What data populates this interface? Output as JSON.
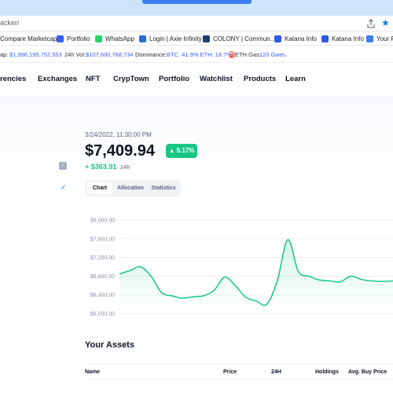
{
  "browser": {
    "url": "acker/",
    "bookmarks": [
      {
        "label": "Compare Marketcap",
        "icon": "bookmark-icon",
        "color": "#ffffff"
      },
      {
        "label": "Portfolio",
        "icon": "portfolio-icon",
        "color": "#3861fb"
      },
      {
        "label": "WhatsApp",
        "icon": "whatsapp-icon",
        "color": "#25d366"
      },
      {
        "label": "Login | Axie Infinity",
        "icon": "axie-icon",
        "color": "#2a6fdb"
      },
      {
        "label": "COLONY | Commun...",
        "icon": "colony-icon",
        "color": "#1f3b73"
      },
      {
        "label": "Katana Info",
        "icon": "katana-icon",
        "color": "#2d5be3"
      },
      {
        "label": "Katana Info",
        "icon": "katana-icon",
        "color": "#2d5be3"
      },
      {
        "label": "Your Pr",
        "icon": "download-icon",
        "color": "#3b7ff2"
      }
    ]
  },
  "ticker": {
    "cap_label": "ap:",
    "cap_value": "$1,996,195,752,553",
    "vol_label": "24h Vol:",
    "vol_value": "$107,600,768,734",
    "dom_label": "Dominance:",
    "dom_value": "BTC: 41.9% ETH: 18.7%",
    "gas_label": "ETH Gas:",
    "gas_value": "120 Gwei"
  },
  "nav": {
    "items": [
      "rencies",
      "Exchanges",
      "NFT",
      "CrypTown",
      "Portfolio",
      "Watchlist",
      "Products",
      "Learn"
    ]
  },
  "portfolio": {
    "timestamp": "3/24/2022, 11:30:00 PM",
    "value": "$7,409.94",
    "change_pct": "5.17%",
    "change_value": "+ $363.91",
    "period": "24h",
    "tabs": [
      "Chart",
      "Allocation",
      "Statistics"
    ],
    "active_tab": "Chart"
  },
  "chart_data": {
    "type": "area",
    "y_ticks": [
      "$8,000.00",
      "$7,600.00",
      "$7,200.00",
      "$6,800.00",
      "$6,400.00",
      "$6,000.00"
    ],
    "ylim": [
      6000,
      8000
    ],
    "y": [
      6850,
      6920,
      7000,
      6800,
      6450,
      6380,
      6330,
      6360,
      6380,
      6500,
      6780,
      6600,
      6350,
      6270,
      6200,
      6700,
      7580,
      6900,
      6800,
      6720,
      6700,
      6680,
      6800,
      6730,
      6700,
      6690,
      6700
    ],
    "line_color": "#16c784",
    "grid": true
  },
  "assets": {
    "title": "Your Assets",
    "columns": [
      "Name",
      "Price",
      "24H",
      "Holdings",
      "Avg. Buy Price"
    ]
  }
}
